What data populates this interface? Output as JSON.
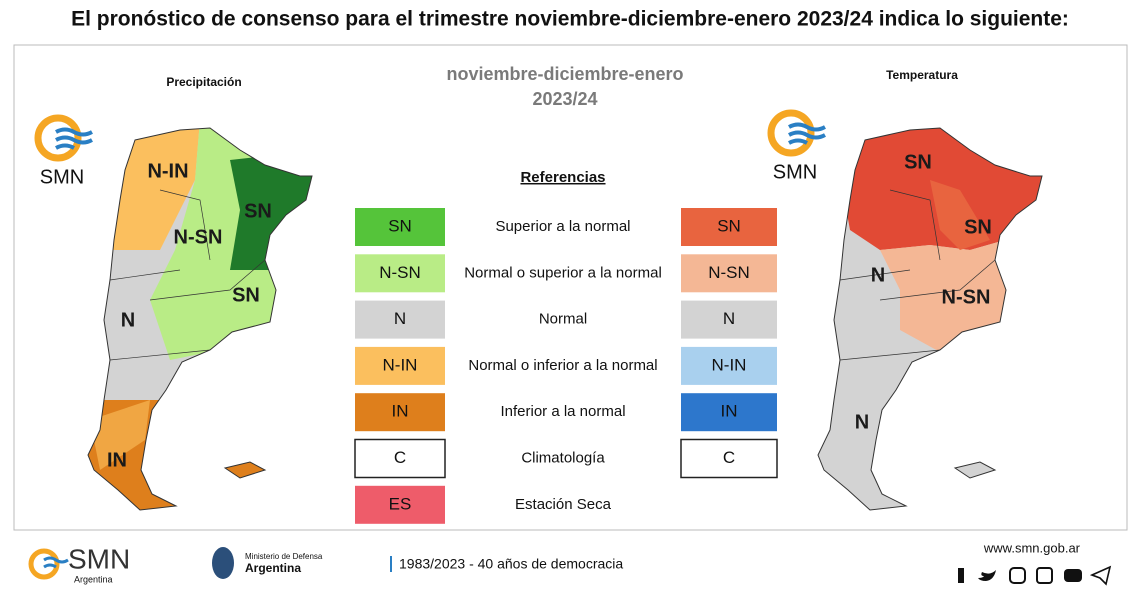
{
  "title": "El pronóstico de consenso para el trimestre noviembre-diciembre-enero 2023/24 indica lo siguiente:",
  "header": {
    "period": "noviembre-diciembre-enero",
    "year": "2023/24"
  },
  "precipitation": {
    "label": "Precipitación",
    "logo": "SMN",
    "map_labels": [
      "N-IN",
      "SN",
      "N-SN",
      "SN",
      "N",
      "IN"
    ]
  },
  "temperature": {
    "label": "Temperatura",
    "logo": "SMN",
    "map_labels": [
      "SN",
      "SN",
      "N",
      "N-SN",
      "N"
    ]
  },
  "legend": {
    "title": "Referencias",
    "rows": [
      {
        "precipitation": "SN",
        "precipitation_color": "#55c43a",
        "description": "Superior a la normal",
        "temperature": "SN",
        "temperature_color": "#e8643f"
      },
      {
        "precipitation": "N-SN",
        "precipitation_color": "#b9ec86",
        "description": "Normal o superior a la normal",
        "temperature": "N-SN",
        "temperature_color": "#f4b795"
      },
      {
        "precipitation": "N",
        "precipitation_color": "#d3d3d3",
        "description": "Normal",
        "temperature": "N",
        "temperature_color": "#d3d3d3"
      },
      {
        "precipitation": "N-IN",
        "precipitation_color": "#fbbf5e",
        "description": "Normal o inferior a la normal",
        "temperature": "N-IN",
        "temperature_color": "#a9d0ee"
      },
      {
        "precipitation": "IN",
        "precipitation_color": "#de7f1c",
        "description": "Inferior a la normal",
        "temperature": "IN",
        "temperature_color": "#2d77cc"
      },
      {
        "precipitation": "C",
        "precipitation_color": "#ffffff",
        "description": "Climatología",
        "temperature": "C",
        "temperature_color": "#ffffff"
      },
      {
        "precipitation": "ES",
        "precipitation_color": "#ee5c6a",
        "description": "Estación Seca"
      }
    ]
  },
  "footer": {
    "logo": "SMN",
    "logo_sub": "Argentina",
    "ministry": "Ministerio de Defensa",
    "ministry_sub": "Argentina",
    "motto": "1983/2023 - 40 años de democracia",
    "url": "www.smn.gob.ar"
  }
}
